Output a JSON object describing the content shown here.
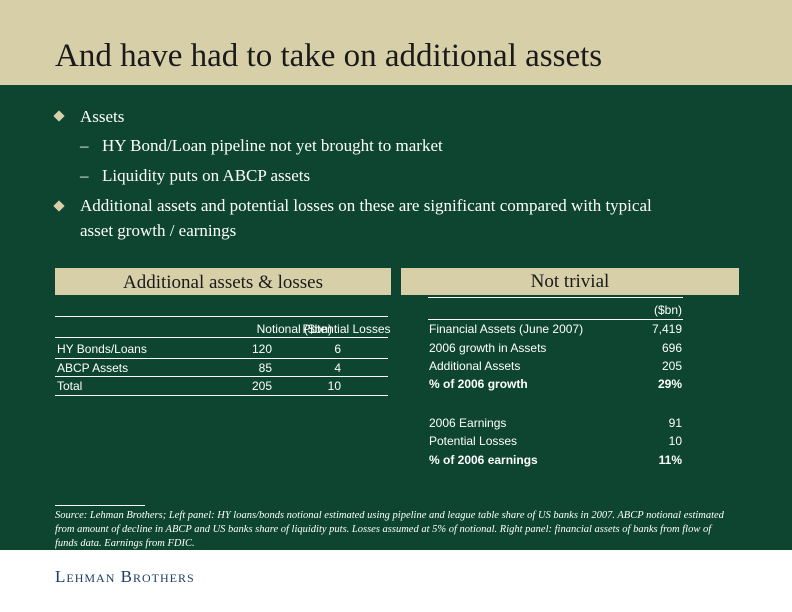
{
  "slide": {
    "title": "And have had to take on additional assets"
  },
  "bullets": [
    {
      "text": "Assets",
      "subs": [
        "HY Bond/Loan pipeline not yet brought to market",
        "Liquidity puts on ABCP assets"
      ]
    },
    {
      "text_line1": "Additional assets and potential losses on these are significant compared with typical",
      "text_line2": "asset growth / earnings"
    }
  ],
  "dash_char": "–",
  "left_panel": {
    "heading": "Additional assets & losses",
    "columns": [
      "",
      "Notional ($bn)",
      "Potential Losses"
    ],
    "rows": [
      [
        "HY Bonds/Loans",
        "120",
        "6"
      ],
      [
        "ABCP Assets",
        "85",
        "4"
      ],
      [
        "Total",
        "205",
        "10"
      ]
    ]
  },
  "right_panel": {
    "heading": "Not trivial",
    "unit": "($bn)",
    "rows": [
      {
        "label": "Financial Assets (June 2007)",
        "value": "7,419",
        "bold": false
      },
      {
        "label": "2006 growth in Assets",
        "value": "696",
        "bold": false
      },
      {
        "label": "Additional Assets",
        "value": "205",
        "bold": false
      },
      {
        "label": "% of 2006 growth",
        "value": "29%",
        "bold": true
      },
      {
        "label": "2006 Earnings",
        "value": "91",
        "bold": false
      },
      {
        "label": "Potential Losses",
        "value": "10",
        "bold": false
      },
      {
        "label": "% of 2006 earnings",
        "value": "11%",
        "bold": true
      }
    ]
  },
  "source": "Source: Lehman Brothers; Left panel: HY loans/bonds notional estimated using pipeline and league table share of US banks in 2007. ABCP notional estimated from amount of decline in ABCP and US banks share of liquidity puts. Losses assumed at 5% of notional. Right panel: financial assets of banks from flow of funds data. Earnings from FDIC.",
  "footer": {
    "logo": "Lehman Brothers"
  },
  "colors": {
    "header_bg": "#d6cfa8",
    "main_bg": "#0d4531",
    "logo": "#1a3e66"
  }
}
